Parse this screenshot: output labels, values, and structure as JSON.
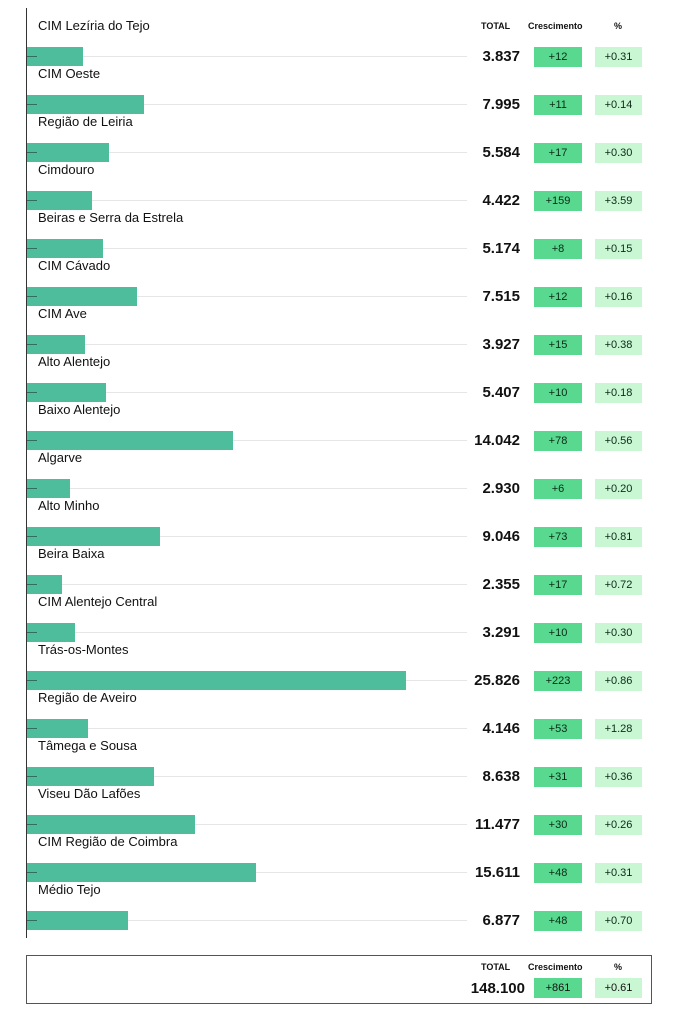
{
  "headers": {
    "total": "TOTAL",
    "growth": "Crescimento",
    "pct": "%"
  },
  "chart_data": {
    "type": "bar",
    "orientation": "horizontal",
    "xlim": [
      0,
      30000
    ],
    "categories": [
      "CIM Lezíria do Tejo",
      "CIM Oeste",
      "Região de Leiria",
      "Cimdouro",
      "Beiras e Serra da Estrela",
      "CIM Cávado",
      "CIM Ave",
      "Alto Alentejo",
      "Baixo Alentejo",
      "Algarve",
      "Alto Minho",
      "Beira Baixa",
      "CIM Alentejo Central",
      "Trás-os-Montes",
      "Região de Aveiro",
      "Tâmega e Sousa",
      "Viseu Dão Lafões",
      "CIM Região de Coimbra",
      "Médio Tejo"
    ],
    "values": [
      3837,
      7995,
      5584,
      4422,
      5174,
      7515,
      3927,
      5407,
      14042,
      2930,
      9046,
      2355,
      3291,
      25826,
      4146,
      8638,
      11477,
      15611,
      6877
    ],
    "totals": [
      "3.837",
      "7.995",
      "5.584",
      "4.422",
      "5.174",
      "7.515",
      "3.927",
      "5.407",
      "14.042",
      "2.930",
      "9.046",
      "2.355",
      "3.291",
      "25.826",
      "4.146",
      "8.638",
      "11.477",
      "15.611",
      "6.877"
    ],
    "growth": [
      "+12",
      "+11",
      "+17",
      "+159",
      "+8",
      "+12",
      "+15",
      "+10",
      "+78",
      "+6",
      "+73",
      "+17",
      "+10",
      "+223",
      "+53",
      "+31",
      "+30",
      "+48",
      "+48"
    ],
    "pct": [
      "+0.31",
      "+0.14",
      "+0.30",
      "+3.59",
      "+0.15",
      "+0.16",
      "+0.38",
      "+0.18",
      "+0.56",
      "+0.20",
      "+0.81",
      "+0.72",
      "+0.30",
      "+0.86",
      "+1.28",
      "+0.36",
      "+0.26",
      "+0.31",
      "+0.70"
    ],
    "colors": {
      "bar": "#4dbd9b",
      "growth_bg": "#59d98f",
      "pct_bg": "#c9f6d3"
    }
  },
  "summary": {
    "total": "148.100",
    "growth": "+861",
    "pct": "+0.61"
  }
}
